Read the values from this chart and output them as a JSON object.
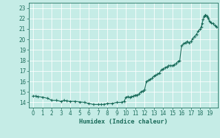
{
  "title": "",
  "xlabel": "Humidex (Indice chaleur)",
  "ylabel": "",
  "background_color": "#c5ece6",
  "grid_color": "#ffffff",
  "line_color": "#1a6b5a",
  "marker_color": "#1a6b5a",
  "xlim": [
    -0.5,
    19.9
  ],
  "ylim": [
    13.5,
    23.5
  ],
  "yticks": [
    14,
    15,
    16,
    17,
    18,
    19,
    20,
    21,
    22,
    23
  ],
  "xticks": [
    0,
    1,
    2,
    3,
    4,
    5,
    6,
    7,
    8,
    9,
    10,
    11,
    12,
    13,
    14,
    15,
    16,
    17,
    18,
    19
  ],
  "x": [
    0,
    0.25,
    0.5,
    1.0,
    1.5,
    2.0,
    2.5,
    3.0,
    3.3,
    3.6,
    4.0,
    4.5,
    5.0,
    5.5,
    6.0,
    6.5,
    7.0,
    7.3,
    7.6,
    8.0,
    8.5,
    9.0,
    9.5,
    9.8,
    10.0,
    10.2,
    10.4,
    10.6,
    10.8,
    11.0,
    11.2,
    11.4,
    11.6,
    11.8,
    12.0,
    12.2,
    12.4,
    12.6,
    12.8,
    13.0,
    13.2,
    13.4,
    13.6,
    13.8,
    14.0,
    14.2,
    14.4,
    14.6,
    14.8,
    15.0,
    15.2,
    15.4,
    15.6,
    15.8,
    16.0,
    16.2,
    16.4,
    16.6,
    16.8,
    17.0,
    17.2,
    17.4,
    17.6,
    17.8,
    18.0,
    18.1,
    18.2,
    18.3,
    18.4,
    18.5,
    18.6,
    18.7,
    18.8,
    18.9,
    19.0,
    19.2,
    19.4,
    19.6,
    19.8
  ],
  "y": [
    14.6,
    14.6,
    14.55,
    14.5,
    14.4,
    14.2,
    14.2,
    14.1,
    14.2,
    14.15,
    14.1,
    14.1,
    14.05,
    14.0,
    13.9,
    13.8,
    13.8,
    13.8,
    13.8,
    13.9,
    13.9,
    14.0,
    14.0,
    14.1,
    14.5,
    14.55,
    14.5,
    14.55,
    14.6,
    14.7,
    14.7,
    14.8,
    15.0,
    15.1,
    15.2,
    16.0,
    16.1,
    16.2,
    16.3,
    16.5,
    16.6,
    16.7,
    16.8,
    17.1,
    17.2,
    17.3,
    17.4,
    17.5,
    17.5,
    17.5,
    17.6,
    17.7,
    17.9,
    18.0,
    19.4,
    19.6,
    19.7,
    19.8,
    19.7,
    19.8,
    20.1,
    20.3,
    20.5,
    20.8,
    21.0,
    21.2,
    21.5,
    21.9,
    22.2,
    22.3,
    22.3,
    22.25,
    22.1,
    22.0,
    21.7,
    21.6,
    21.5,
    21.3,
    21.2
  ]
}
